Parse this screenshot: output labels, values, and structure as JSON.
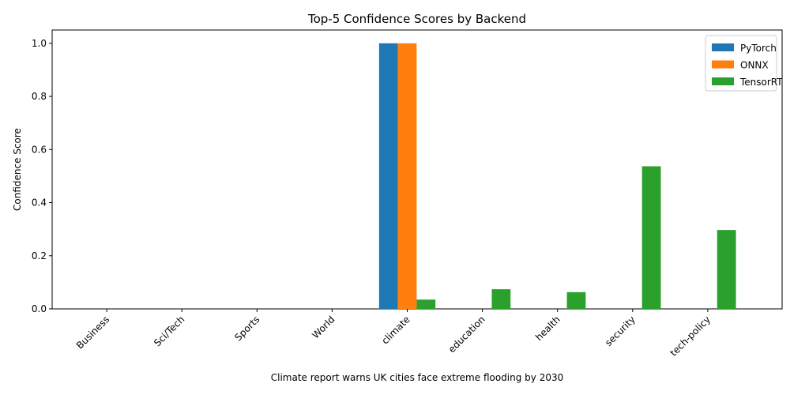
{
  "chart_data": {
    "type": "bar",
    "title": "Top-5 Confidence Scores by Backend",
    "xlabel": "Climate report warns UK cities face extreme flooding by 2030",
    "ylabel": "Confidence Score",
    "categories": [
      "Business",
      "Sci/Tech",
      "Sports",
      "World",
      "climate",
      "education",
      "health",
      "security",
      "tech-policy"
    ],
    "series": [
      {
        "name": "PyTorch",
        "color": "#1f77b4",
        "values": [
          0,
          0,
          0,
          0,
          1.0,
          0,
          0,
          0,
          0
        ]
      },
      {
        "name": "ONNX",
        "color": "#ff7f0e",
        "values": [
          0,
          0,
          0,
          0,
          1.0,
          0,
          0,
          0,
          0
        ]
      },
      {
        "name": "TensorRT",
        "color": "#2ca02c",
        "values": [
          0,
          0,
          0,
          0,
          0.035,
          0.074,
          0.063,
          0.537,
          0.297
        ]
      }
    ],
    "ylim": [
      0,
      1.05
    ],
    "yticks": [
      "0.0",
      "0.2",
      "0.4",
      "0.6",
      "0.8",
      "1.0"
    ],
    "legend_position": "top-right",
    "grid": false
  }
}
